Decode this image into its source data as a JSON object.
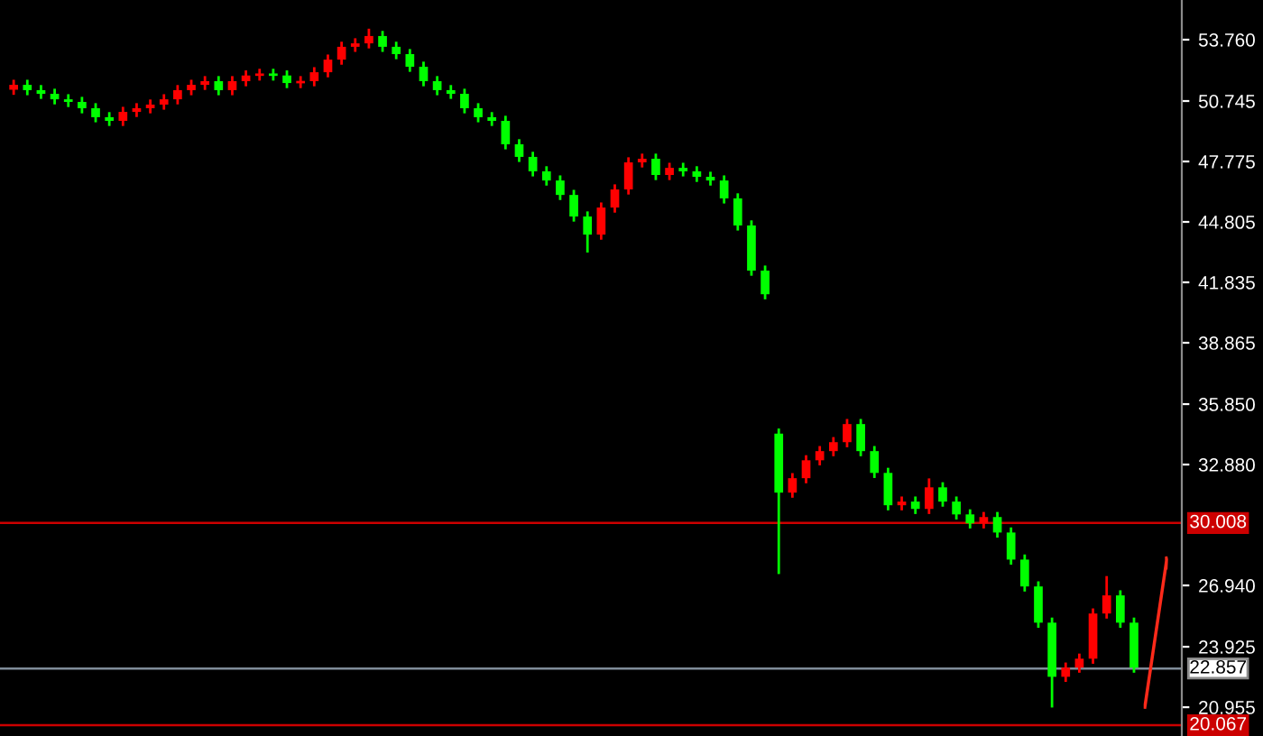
{
  "chart_data": {
    "type": "candlestick",
    "categories": [
      null,
      null,
      null,
      null,
      null,
      null,
      null,
      null,
      null,
      null,
      null,
      null,
      null,
      null,
      null,
      null,
      null,
      null,
      null,
      null,
      null,
      null,
      null,
      null,
      null,
      null,
      null,
      null,
      null,
      null,
      null,
      null,
      null,
      null,
      null,
      null,
      null,
      null,
      null,
      null,
      null,
      null,
      null,
      null,
      null,
      null,
      null,
      null,
      null,
      null,
      null,
      null,
      null,
      null,
      null,
      null,
      null,
      null,
      null,
      null,
      null,
      null,
      null,
      null,
      null,
      null,
      null,
      null,
      null,
      null,
      null,
      null,
      null,
      null,
      null,
      null,
      null,
      null,
      null,
      null,
      null,
      null,
      null
    ],
    "ohlc": [
      [
        51.3,
        51.79,
        51.05,
        51.54
      ],
      [
        51.54,
        51.79,
        51.03,
        51.28
      ],
      [
        51.28,
        51.53,
        50.85,
        51.1
      ],
      [
        51.1,
        51.35,
        50.58,
        50.83
      ],
      [
        50.83,
        51.08,
        50.45,
        50.7
      ],
      [
        50.7,
        50.95,
        50.14,
        50.39
      ],
      [
        50.39,
        50.64,
        49.7,
        49.95
      ],
      [
        49.95,
        50.2,
        49.52,
        49.77
      ],
      [
        49.77,
        50.46,
        49.52,
        50.21
      ],
      [
        50.21,
        50.64,
        49.96,
        50.39
      ],
      [
        50.39,
        50.82,
        50.14,
        50.57
      ],
      [
        50.57,
        51.08,
        50.32,
        50.83
      ],
      [
        50.83,
        51.53,
        50.58,
        51.28
      ],
      [
        51.28,
        51.79,
        51.03,
        51.54
      ],
      [
        51.54,
        51.97,
        51.29,
        51.72
      ],
      [
        51.72,
        51.97,
        51.03,
        51.28
      ],
      [
        51.28,
        51.97,
        51.03,
        51.72
      ],
      [
        51.72,
        52.25,
        51.47,
        52.0
      ],
      [
        52.0,
        52.33,
        51.75,
        52.08
      ],
      [
        52.08,
        52.33,
        51.75,
        52.0
      ],
      [
        52.0,
        52.25,
        51.38,
        51.63
      ],
      [
        51.63,
        51.97,
        51.38,
        51.72
      ],
      [
        51.72,
        52.41,
        51.47,
        52.16
      ],
      [
        52.16,
        53.03,
        51.91,
        52.78
      ],
      [
        52.78,
        53.66,
        52.53,
        53.41
      ],
      [
        53.41,
        53.83,
        53.16,
        53.58
      ],
      [
        53.58,
        54.3,
        53.33,
        53.94
      ],
      [
        53.94,
        54.19,
        53.16,
        53.41
      ],
      [
        53.41,
        53.66,
        52.8,
        53.05
      ],
      [
        53.05,
        53.3,
        52.18,
        52.43
      ],
      [
        52.43,
        52.68,
        51.47,
        51.72
      ],
      [
        51.72,
        51.97,
        51.03,
        51.28
      ],
      [
        51.28,
        51.53,
        50.85,
        51.1
      ],
      [
        51.1,
        51.35,
        50.14,
        50.39
      ],
      [
        50.39,
        50.64,
        49.7,
        49.95
      ],
      [
        49.95,
        50.2,
        49.52,
        49.77
      ],
      [
        49.77,
        50.02,
        48.37,
        48.62
      ],
      [
        48.62,
        48.87,
        47.75,
        48.0
      ],
      [
        48.0,
        48.25,
        47.04,
        47.29
      ],
      [
        47.29,
        47.54,
        46.59,
        46.84
      ],
      [
        46.84,
        47.09,
        45.88,
        46.13
      ],
      [
        46.13,
        46.38,
        44.82,
        45.07
      ],
      [
        45.07,
        45.32,
        43.3,
        44.18
      ],
      [
        44.18,
        45.76,
        43.93,
        45.51
      ],
      [
        45.51,
        46.65,
        45.26,
        46.4
      ],
      [
        46.4,
        47.98,
        46.15,
        47.73
      ],
      [
        47.73,
        48.16,
        47.48,
        47.91
      ],
      [
        47.91,
        48.16,
        46.86,
        47.11
      ],
      [
        47.11,
        47.71,
        46.86,
        47.46
      ],
      [
        47.46,
        47.71,
        47.04,
        47.29
      ],
      [
        47.29,
        47.54,
        46.77,
        47.02
      ],
      [
        47.02,
        47.27,
        46.59,
        46.84
      ],
      [
        46.84,
        47.09,
        45.71,
        45.96
      ],
      [
        45.96,
        46.21,
        44.38,
        44.63
      ],
      [
        44.63,
        44.88,
        42.16,
        42.41
      ],
      [
        42.41,
        42.66,
        41.0,
        41.25
      ],
      [
        34.4,
        34.65,
        27.5,
        31.5
      ],
      [
        31.5,
        32.46,
        31.25,
        32.21
      ],
      [
        32.21,
        33.34,
        31.96,
        33.09
      ],
      [
        33.09,
        33.79,
        32.84,
        33.54
      ],
      [
        33.54,
        34.23,
        33.29,
        33.98
      ],
      [
        33.98,
        35.12,
        33.73,
        34.87
      ],
      [
        34.87,
        35.12,
        33.29,
        33.54
      ],
      [
        33.54,
        33.79,
        32.22,
        32.47
      ],
      [
        32.47,
        32.72,
        30.63,
        30.88
      ],
      [
        30.88,
        31.31,
        30.63,
        31.06
      ],
      [
        31.06,
        31.31,
        30.45,
        30.7
      ],
      [
        30.7,
        32.2,
        30.45,
        31.76
      ],
      [
        31.76,
        32.01,
        30.81,
        31.06
      ],
      [
        31.06,
        31.31,
        30.18,
        30.43
      ],
      [
        30.43,
        30.68,
        29.74,
        29.99
      ],
      [
        29.99,
        30.55,
        29.74,
        30.3
      ],
      [
        30.3,
        30.55,
        29.29,
        29.54
      ],
      [
        29.54,
        29.79,
        27.96,
        28.21
      ],
      [
        28.21,
        28.46,
        26.64,
        26.89
      ],
      [
        26.89,
        27.14,
        24.86,
        25.11
      ],
      [
        25.11,
        25.36,
        20.94,
        22.45
      ],
      [
        22.45,
        23.15,
        22.2,
        22.9
      ],
      [
        22.9,
        23.59,
        22.65,
        23.34
      ],
      [
        23.34,
        25.81,
        23.09,
        25.56
      ],
      [
        25.56,
        27.4,
        25.31,
        26.45
      ],
      [
        26.45,
        26.7,
        24.86,
        25.11
      ],
      [
        25.11,
        25.36,
        22.65,
        22.9
      ]
    ],
    "colors": [
      "#ff0000",
      "#00ff00",
      "#00ff00",
      "#00ff00",
      "#00ff00",
      "#00ff00",
      "#00ff00",
      "#00ff00",
      "#ff0000",
      "#ff0000",
      "#ff0000",
      "#ff0000",
      "#ff0000",
      "#ff0000",
      "#ff0000",
      "#00ff00",
      "#ff0000",
      "#ff0000",
      "#ff0000",
      "#00ff00",
      "#00ff00",
      "#ff0000",
      "#ff0000",
      "#ff0000",
      "#ff0000",
      "#ff0000",
      "#ff0000",
      "#00ff00",
      "#00ff00",
      "#00ff00",
      "#00ff00",
      "#00ff00",
      "#00ff00",
      "#00ff00",
      "#00ff00",
      "#00ff00",
      "#00ff00",
      "#00ff00",
      "#00ff00",
      "#00ff00",
      "#00ff00",
      "#00ff00",
      "#00ff00",
      "#ff0000",
      "#ff0000",
      "#ff0000",
      "#ff0000",
      "#00ff00",
      "#ff0000",
      "#00ff00",
      "#00ff00",
      "#00ff00",
      "#00ff00",
      "#00ff00",
      "#00ff00",
      "#00ff00",
      "#00ff00",
      "#ff0000",
      "#ff0000",
      "#ff0000",
      "#ff0000",
      "#ff0000",
      "#00ff00",
      "#00ff00",
      "#00ff00",
      "#ff0000",
      "#00ff00",
      "#ff0000",
      "#00ff00",
      "#00ff00",
      "#00ff00",
      "#ff0000",
      "#00ff00",
      "#00ff00",
      "#00ff00",
      "#00ff00",
      "#00ff00",
      "#ff0000",
      "#ff0000",
      "#ff0000",
      "#ff0000",
      "#00ff00",
      "#00ff00"
    ],
    "ylim": [
      19.54,
      55.71
    ],
    "yticks": [
      {
        "value": 53.76,
        "label": "53.760"
      },
      {
        "value": 50.745,
        "label": "50.745"
      },
      {
        "value": 47.775,
        "label": "47.775"
      },
      {
        "value": 44.805,
        "label": "44.805"
      },
      {
        "value": 41.835,
        "label": "41.835"
      },
      {
        "value": 38.865,
        "label": "38.865"
      },
      {
        "value": 35.85,
        "label": "35.850"
      },
      {
        "value": 32.88,
        "label": "32.880"
      },
      {
        "value": 26.94,
        "label": "26.940"
      },
      {
        "value": 23.925,
        "label": "23.925"
      },
      {
        "value": 20.955,
        "label": "20.955"
      }
    ],
    "tick_labels": "y",
    "grid": false,
    "ref_lines": [
      {
        "axis": "y",
        "value": 30.008,
        "label": "30.008",
        "color": "#cc0000"
      },
      {
        "axis": "y",
        "value": 22.857,
        "label": "22.857",
        "color": "#7f8c99"
      },
      {
        "axis": "y",
        "value": 20.067,
        "label": "20.067",
        "color": "#cc0000"
      }
    ]
  }
}
